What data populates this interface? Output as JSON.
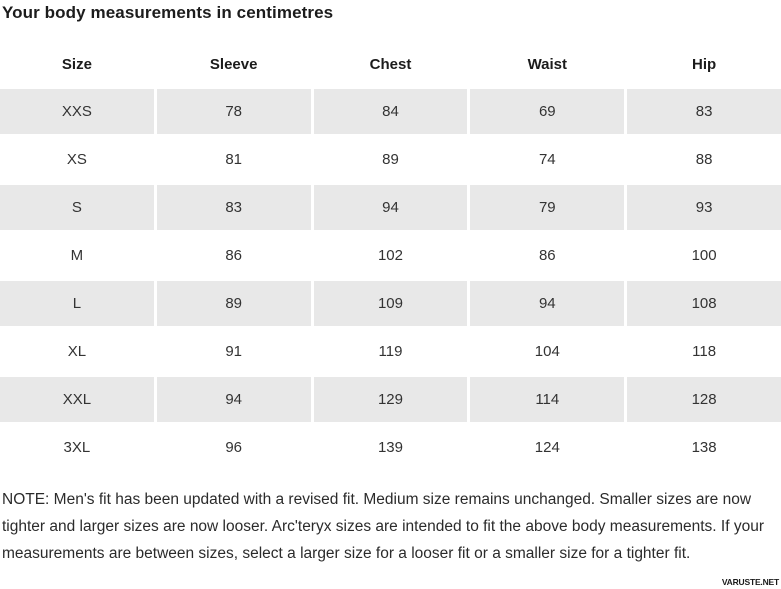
{
  "page": {
    "title": "Your body measurements in centimetres",
    "note": "NOTE: Men's fit has been updated with a revised fit. Medium size remains unchanged. Smaller sizes are now tighter and larger sizes are now looser. Arc'teryx sizes are intended to fit the above body measurements. If your measurements are between sizes, select a larger size for a looser fit or a smaller size for a tighter fit.",
    "watermark": "VARUSTE.NET"
  },
  "colors": {
    "row_alt_bg": "#e8e8e8",
    "text": "#333333",
    "heading_text": "#1c1c1c"
  },
  "chart_data": {
    "type": "table",
    "title": "Your body measurements in centimetres",
    "columns": [
      "Size",
      "Sleeve",
      "Chest",
      "Waist",
      "Hip"
    ],
    "rows": [
      [
        "XXS",
        "78",
        "84",
        "69",
        "83"
      ],
      [
        "XS",
        "81",
        "89",
        "74",
        "88"
      ],
      [
        "S",
        "83",
        "94",
        "79",
        "93"
      ],
      [
        "M",
        "86",
        "102",
        "86",
        "100"
      ],
      [
        "L",
        "89",
        "109",
        "94",
        "108"
      ],
      [
        "XL",
        "91",
        "119",
        "104",
        "118"
      ],
      [
        "XXL",
        "94",
        "129",
        "114",
        "128"
      ],
      [
        "3XL",
        "96",
        "139",
        "124",
        "138"
      ]
    ]
  }
}
